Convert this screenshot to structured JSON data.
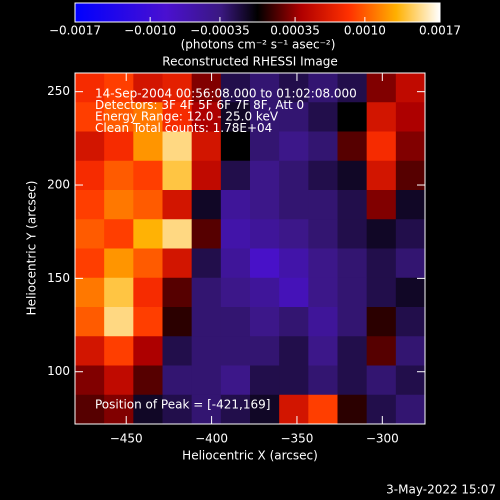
{
  "chart_data": {
    "type": "heatmap",
    "title": "Reconstructed RHESSI Image",
    "xlabel": "Heliocentric X (arcsec)",
    "ylabel": "Heliocentric Y (arcsec)",
    "colorbar_label": "(photons cm⁻² s⁻¹ asec⁻²)",
    "annotations": [
      "14-Sep-2004 00:56:08.000 to 01:02:08.000",
      "Detectors: 3F 4F 5F 6F 7F 8F, Att 0",
      "Energy Range: 12.0 - 25.0 keV",
      "Clean     Total counts: 1.78E+04"
    ],
    "peak_label": "Position of Peak = [-421,169]",
    "footer": "3-May-2022 15:07",
    "xlim": [
      -480,
      -275
    ],
    "ylim": [
      72,
      260
    ],
    "xticks": [
      {
        "value": -450,
        "label": "−450"
      },
      {
        "value": -400,
        "label": "−400"
      },
      {
        "value": -350,
        "label": "−350"
      },
      {
        "value": -300,
        "label": "−300"
      }
    ],
    "yticks": [
      100,
      150,
      200,
      250
    ],
    "zlim": [
      -0.0017,
      0.0017
    ],
    "zticks": [
      {
        "value": -0.0017,
        "label": "−0.0017"
      },
      {
        "value": -0.001,
        "label": "−0.0010"
      },
      {
        "value": -0.00035,
        "label": "−0.00035"
      },
      0.00035,
      {
        "value": 0.001,
        "label": "0.0010"
      },
      0.0017
    ],
    "z": [
      [
        0.0008,
        0.0009,
        0.0006,
        0.0007,
        0.0003,
        -0.0002,
        -0.0003,
        -0.0002,
        -0.0003,
        -0.0002,
        0.0003,
        0.0005
      ],
      [
        0.0009,
        0.001,
        0.0011,
        0.0008,
        0.0004,
        -0.0001,
        -0.0003,
        -0.0003,
        -0.0002,
        0,
        0.0006,
        0.0004
      ],
      [
        0.0006,
        0.0008,
        0.0012,
        0.0015,
        0.0006,
        0,
        -0.0003,
        -0.0004,
        -0.0003,
        0.0002,
        0.0008,
        0.0003
      ],
      [
        0.0008,
        0.001,
        0.0009,
        0.0014,
        0.0005,
        -0.0002,
        -0.0004,
        -0.0003,
        -0.0002,
        -0.0001,
        0.0006,
        0.0002
      ],
      [
        0.0009,
        0.0011,
        0.001,
        0.0006,
        -0.0001,
        -0.0005,
        -0.0004,
        -0.0003,
        -0.0003,
        -0.0002,
        0.0003,
        -0.0001
      ],
      [
        0.001,
        0.0009,
        0.0013,
        0.0015,
        0.0002,
        -0.0006,
        -0.0005,
        -0.0004,
        -0.0003,
        -0.0002,
        -0.0001,
        -0.0002
      ],
      [
        0.0009,
        0.0012,
        0.001,
        0.0006,
        -0.0002,
        -0.0005,
        -0.0008,
        -0.0006,
        -0.0004,
        -0.0003,
        -0.0002,
        -0.0003
      ],
      [
        0.0011,
        0.0014,
        0.0008,
        0.0002,
        -0.0003,
        -0.0004,
        -0.0005,
        -0.0007,
        -0.0004,
        -0.0003,
        -0.0002,
        -0.0001
      ],
      [
        0.001,
        0.0015,
        0.0009,
        0.0001,
        -0.0003,
        -0.0003,
        -0.0004,
        -0.0003,
        -0.0005,
        -0.0003,
        0.0001,
        -0.0002
      ],
      [
        0.0006,
        0.0009,
        0.0004,
        -0.0002,
        -0.0003,
        -0.0003,
        -0.0003,
        -0.0002,
        -0.0004,
        -0.0002,
        0.0002,
        -0.0003
      ],
      [
        0.0003,
        0.0005,
        0.0002,
        -0.0003,
        -0.0003,
        -0.0004,
        -0.0002,
        -0.0002,
        -0.0003,
        -0.0002,
        -0.0003,
        -0.0002
      ],
      [
        0.0002,
        0.0003,
        -0.0001,
        -0.0002,
        -0.0003,
        -0.0002,
        -0.0001,
        0.0006,
        0.0009,
        0.0001,
        -0.0002,
        -0.0003
      ]
    ]
  }
}
